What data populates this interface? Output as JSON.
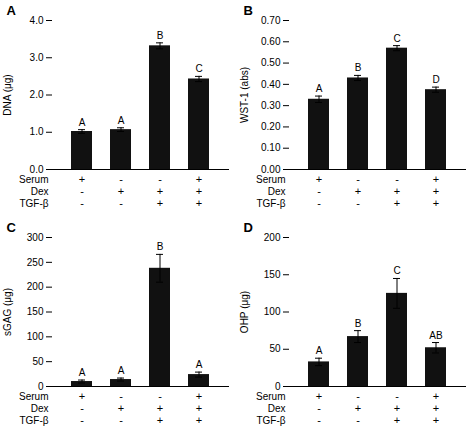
{
  "chart_data": [
    {
      "type": "bar",
      "title": "A",
      "categories": [
        null,
        null,
        null,
        null
      ],
      "values": [
        1.02,
        1.07,
        3.32,
        2.43
      ],
      "errors": [
        0.05,
        0.05,
        0.08,
        0.07
      ],
      "letters": [
        "A",
        "A",
        "B",
        "C"
      ],
      "color": "#111111",
      "ylabel": "DNA (μg)",
      "ylim": [
        0,
        4
      ],
      "yticks": [
        0,
        1,
        2,
        3,
        4
      ],
      "row_labels": [
        "Serum",
        "Dex",
        "TGF-β"
      ],
      "row_marks": [
        [
          "+",
          "-",
          "-",
          "+"
        ],
        [
          "-",
          "+",
          "+",
          "+"
        ],
        [
          "-",
          "-",
          "+",
          "+"
        ]
      ]
    },
    {
      "type": "bar",
      "title": "B",
      "categories": [
        null,
        null,
        null,
        null
      ],
      "values": [
        0.33,
        0.43,
        0.57,
        0.375
      ],
      "errors": [
        0.015,
        0.012,
        0.012,
        0.012
      ],
      "letters": [
        "A",
        "B",
        "C",
        "D"
      ],
      "color": "#111111",
      "ylabel": "WST-1 (abs)",
      "ylim": [
        0,
        0.7
      ],
      "yticks": [
        0,
        0.1,
        0.2,
        0.3,
        0.4,
        0.5,
        0.6,
        0.7
      ],
      "row_labels": [
        "Serum",
        "Dex",
        "TGF-β"
      ],
      "row_marks": [
        [
          "+",
          "-",
          "-",
          "+"
        ],
        [
          "-",
          "+",
          "+",
          "+"
        ],
        [
          "-",
          "-",
          "+",
          "+"
        ]
      ]
    },
    {
      "type": "bar",
      "title": "C",
      "categories": [
        null,
        null,
        null,
        null
      ],
      "values": [
        10,
        14,
        238,
        24
      ],
      "errors": [
        3,
        3,
        28,
        5
      ],
      "letters": [
        "A",
        "A",
        "B",
        "A"
      ],
      "color": "#111111",
      "ylabel": "sGAG (μg)",
      "ylim": [
        0,
        300
      ],
      "yticks": [
        0,
        50,
        100,
        150,
        200,
        250,
        300
      ],
      "row_labels": [
        "Serum",
        "Dex",
        "TGF-β"
      ],
      "row_marks": [
        [
          "+",
          "-",
          "-",
          "+"
        ],
        [
          "-",
          "+",
          "+",
          "+"
        ],
        [
          "-",
          "-",
          "+",
          "+"
        ]
      ]
    },
    {
      "type": "bar",
      "title": "D",
      "categories": [
        null,
        null,
        null,
        null
      ],
      "values": [
        33,
        67,
        125,
        52
      ],
      "errors": [
        5,
        8,
        20,
        7
      ],
      "letters": [
        "A",
        "B",
        "C",
        "AB"
      ],
      "color": "#111111",
      "ylabel": "OHP (μg)",
      "ylim": [
        0,
        200
      ],
      "yticks": [
        0,
        50,
        100,
        150,
        200
      ],
      "row_labels": [
        "Serum",
        "Dex",
        "TGF-β"
      ],
      "row_marks": [
        [
          "+",
          "-",
          "-",
          "+"
        ],
        [
          "-",
          "+",
          "+",
          "+"
        ],
        [
          "-",
          "-",
          "+",
          "+"
        ]
      ]
    }
  ]
}
